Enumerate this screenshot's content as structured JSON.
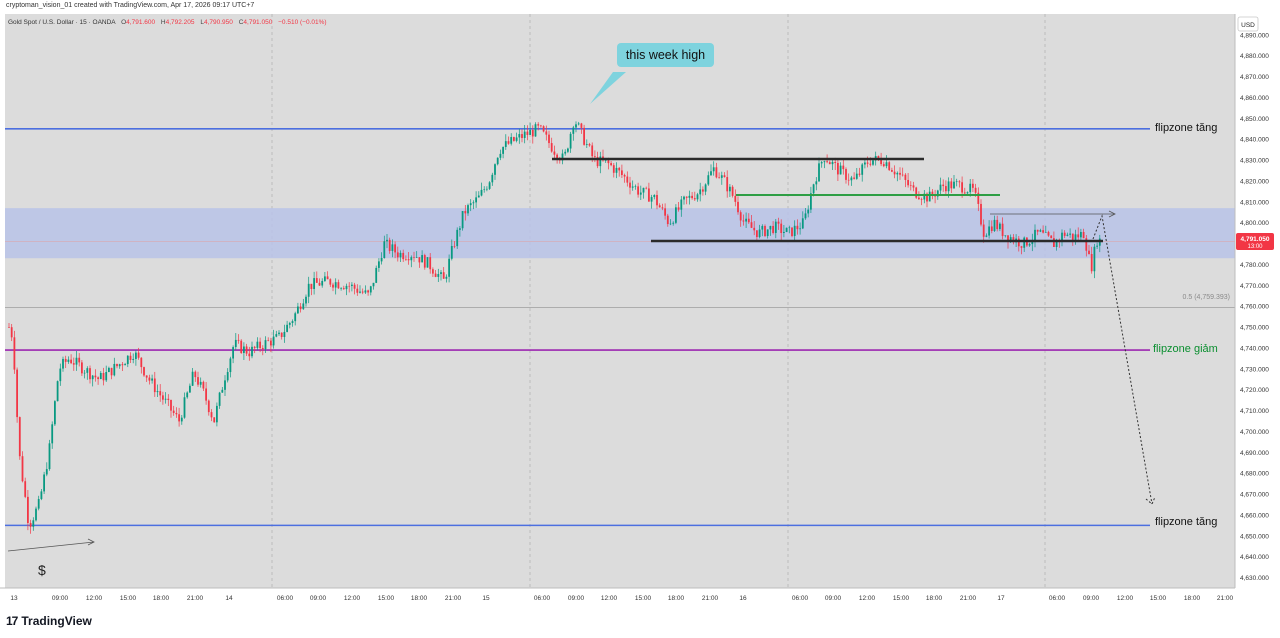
{
  "header": {
    "created_by": "cryptoman_vision_01 created with TradingView.com, Apr 17, 2026 09:17 UTC+7",
    "symbol": "Gold Spot / U.S. Dollar · 15 · OANDA",
    "ohlc": [
      {
        "k": "O",
        "v": "4,791.600"
      },
      {
        "k": "H",
        "v": "4,792.205"
      },
      {
        "k": "L",
        "v": "4,790.950"
      },
      {
        "k": "C",
        "v": "4,791.050"
      }
    ],
    "change": "−0.510 (−0.01%)"
  },
  "currency_badge": "USD",
  "price_badge": {
    "price": "4,791.050",
    "countdown": "13:00",
    "color": "#f23645"
  },
  "brand": {
    "icon": "17",
    "name": "TradingView"
  },
  "colors": {
    "background": "#dcdcdc",
    "up": "#089981",
    "down": "#f23645",
    "zone": "#b9c3e7",
    "blue_line": "#4c6fe0",
    "purple_line": "#9c27b0",
    "green_label": "#0b8f30",
    "callout": "#7ed3de"
  },
  "labels": {
    "flip_up_top": "flipzone tăng",
    "flip_down": "flipzone giảm",
    "flip_up_bottom": "flipzone tăng",
    "week_high": "this week high",
    "fib": "0.5 (4,759.393)",
    "dollar": "$"
  },
  "chart_data": {
    "type": "candlestick",
    "y_range": [
      4625,
      4900
    ],
    "y_ticks": [
      "4,630.000",
      "4,640.000",
      "4,650.000",
      "4,660.000",
      "4,670.000",
      "4,680.000",
      "4,690.000",
      "4,700.000",
      "4,710.000",
      "4,720.000",
      "4,730.000",
      "4,740.000",
      "4,750.000",
      "4,760.000",
      "4,770.000",
      "4,780.000",
      "4,790.000",
      "4,800.000",
      "4,810.000",
      "4,820.000",
      "4,830.000",
      "4,840.000",
      "4,850.000",
      "4,860.000",
      "4,870.000",
      "4,880.000",
      "4,890.000"
    ],
    "x_ticks": [
      "13",
      "09:00",
      "12:00",
      "15:00",
      "18:00",
      "21:00",
      "14",
      "06:00",
      "09:00",
      "12:00",
      "15:00",
      "18:00",
      "21:00",
      "15",
      "06:00",
      "09:00",
      "12:00",
      "15:00",
      "18:00",
      "21:00",
      "16",
      "06:00",
      "09:00",
      "12:00",
      "15:00",
      "18:00",
      "21:00",
      "17",
      "06:00",
      "09:00",
      "12:00",
      "15:00",
      "18:00",
      "21:00"
    ],
    "last_price": 4791.05,
    "levels": [
      {
        "name": "flipzone tăng",
        "price": 4845,
        "color": "#4c6fe0"
      },
      {
        "name": "flipzone giảm",
        "price": 4739,
        "color": "#9c27b0"
      },
      {
        "name": "flipzone tăng",
        "price": 4655,
        "color": "#4c6fe0"
      },
      {
        "name": "0.5 (4,759.393)",
        "price": 4759.393,
        "color": "#9e9e9e"
      }
    ],
    "zone": [
      4783,
      4807
    ],
    "path": [
      [
        0,
        4750
      ],
      [
        4,
        4745
      ],
      [
        10,
        4690
      ],
      [
        20,
        4655
      ],
      [
        30,
        4665
      ],
      [
        40,
        4690
      ],
      [
        50,
        4730
      ],
      [
        60,
        4735
      ],
      [
        75,
        4730
      ],
      [
        90,
        4725
      ],
      [
        110,
        4732
      ],
      [
        125,
        4738
      ],
      [
        140,
        4725
      ],
      [
        155,
        4715
      ],
      [
        170,
        4705
      ],
      [
        185,
        4728
      ],
      [
        195,
        4718
      ],
      [
        205,
        4705
      ],
      [
        215,
        4725
      ],
      [
        225,
        4742
      ],
      [
        240,
        4738
      ],
      [
        255,
        4742
      ],
      [
        270,
        4745
      ],
      [
        285,
        4755
      ],
      [
        300,
        4770
      ],
      [
        320,
        4772
      ],
      [
        340,
        4770
      ],
      [
        360,
        4765
      ],
      [
        375,
        4790
      ],
      [
        390,
        4785
      ],
      [
        405,
        4785
      ],
      [
        420,
        4780
      ],
      [
        435,
        4772
      ],
      [
        445,
        4790
      ],
      [
        455,
        4805
      ],
      [
        470,
        4812
      ],
      [
        480,
        4820
      ],
      [
        490,
        4835
      ],
      [
        500,
        4838
      ],
      [
        515,
        4842
      ],
      [
        530,
        4845
      ],
      [
        545,
        4835
      ],
      [
        555,
        4830
      ],
      [
        565,
        4850
      ],
      [
        575,
        4840
      ],
      [
        585,
        4830
      ],
      [
        600,
        4828
      ],
      [
        615,
        4822
      ],
      [
        630,
        4815
      ],
      [
        645,
        4812
      ],
      [
        660,
        4800
      ],
      [
        675,
        4810
      ],
      [
        690,
        4815
      ],
      [
        705,
        4826
      ],
      [
        715,
        4820
      ],
      [
        725,
        4812
      ],
      [
        735,
        4800
      ],
      [
        750,
        4795
      ],
      [
        765,
        4798
      ],
      [
        780,
        4795
      ],
      [
        795,
        4800
      ],
      [
        805,
        4820
      ],
      [
        815,
        4832
      ],
      [
        830,
        4825
      ],
      [
        845,
        4820
      ],
      [
        860,
        4830
      ],
      [
        875,
        4830
      ],
      [
        890,
        4823
      ],
      [
        905,
        4815
      ],
      [
        920,
        4812
      ],
      [
        935,
        4818
      ],
      [
        950,
        4818
      ],
      [
        965,
        4815
      ],
      [
        975,
        4795
      ],
      [
        985,
        4800
      ],
      [
        995,
        4795
      ],
      [
        1005,
        4792
      ],
      [
        1015,
        4790
      ],
      [
        1030,
        4795
      ],
      [
        1045,
        4790
      ],
      [
        1055,
        4795
      ],
      [
        1065,
        4793
      ],
      [
        1075,
        4795
      ],
      [
        1082,
        4778
      ],
      [
        1088,
        4792
      ],
      [
        1093,
        4791.05
      ]
    ]
  }
}
